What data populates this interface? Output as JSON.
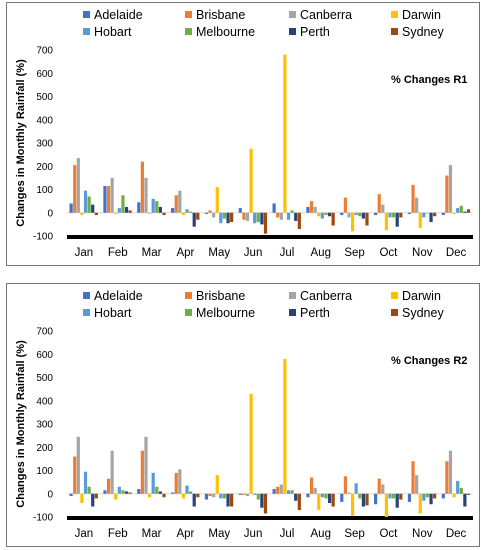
{
  "colors": {
    "Adelaide": "#4472C4",
    "Brisbane": "#ED7D31",
    "Canberra": "#A5A5A5",
    "Darwin": "#FFC000",
    "Hobart": "#5B9BD5",
    "Melbourne": "#70AD47",
    "Perth": "#264478",
    "Sydney": "#9E480E"
  },
  "chart_data": [
    {
      "type": "bar",
      "annotation": "% Changes R1",
      "ylabel": "Changes in Monthly Rainfall (%)",
      "xlabel": "",
      "ylim": [
        -100,
        700
      ],
      "yticks": [
        -100,
        0,
        100,
        200,
        300,
        400,
        500,
        600,
        700
      ],
      "legend_position": "top",
      "grid": false,
      "categories": [
        "Jan",
        "Feb",
        "Mar",
        "Apr",
        "May",
        "Jun",
        "Jul",
        "Aug",
        "Sep",
        "Oct",
        "Nov",
        "Dec"
      ],
      "series": [
        {
          "name": "Adelaide",
          "values": [
            40,
            115,
            45,
            20,
            -5,
            20,
            40,
            25,
            -10,
            -10,
            -5,
            -10
          ]
        },
        {
          "name": "Brisbane",
          "values": [
            205,
            115,
            220,
            75,
            10,
            -30,
            -20,
            50,
            65,
            80,
            120,
            160
          ]
        },
        {
          "name": "Canberra",
          "values": [
            235,
            150,
            150,
            95,
            -20,
            -35,
            -30,
            25,
            -20,
            35,
            65,
            205
          ]
        },
        {
          "name": "Darwin",
          "values": [
            -10,
            -5,
            -5,
            -10,
            110,
            275,
            680,
            -15,
            -80,
            -75,
            -65,
            -5
          ]
        },
        {
          "name": "Hobart",
          "values": [
            95,
            20,
            60,
            15,
            -45,
            -45,
            -30,
            -25,
            -10,
            -20,
            -20,
            20
          ]
        },
        {
          "name": "Melbourne",
          "values": [
            70,
            75,
            50,
            5,
            -25,
            -40,
            10,
            -10,
            -15,
            -20,
            0,
            30
          ]
        },
        {
          "name": "Perth",
          "values": [
            35,
            25,
            25,
            -60,
            -45,
            -50,
            -35,
            -15,
            -25,
            -60,
            -40,
            5
          ]
        },
        {
          "name": "Sydney",
          "values": [
            -10,
            10,
            -10,
            -30,
            -40,
            -90,
            -70,
            -55,
            -55,
            -20,
            -15,
            15
          ]
        }
      ]
    },
    {
      "type": "bar",
      "annotation": "% Changes R2",
      "ylabel": "Changes in Monthly Rainfall (%)",
      "xlabel": "",
      "ylim": [
        -100,
        700
      ],
      "yticks": [
        -100,
        0,
        100,
        200,
        300,
        400,
        500,
        600,
        700
      ],
      "legend_position": "top",
      "grid": false,
      "categories": [
        "Jan",
        "Feb",
        "Mar",
        "Apr",
        "May",
        "Jun",
        "Jul",
        "Aug",
        "Sep",
        "Oct",
        "Nov",
        "Dec"
      ],
      "series": [
        {
          "name": "Adelaide",
          "values": [
            -10,
            15,
            20,
            5,
            -25,
            -5,
            20,
            -15,
            -35,
            -45,
            -35,
            -20
          ]
        },
        {
          "name": "Brisbane",
          "values": [
            160,
            65,
            185,
            90,
            -10,
            -5,
            30,
            70,
            75,
            65,
            140,
            140
          ]
        },
        {
          "name": "Canberra",
          "values": [
            245,
            185,
            245,
            105,
            -15,
            -10,
            40,
            25,
            5,
            40,
            80,
            185
          ]
        },
        {
          "name": "Darwin",
          "values": [
            -40,
            -25,
            -15,
            -20,
            80,
            430,
            580,
            -70,
            -95,
            -100,
            -85,
            -15
          ]
        },
        {
          "name": "Hobart",
          "values": [
            95,
            30,
            90,
            35,
            -20,
            -5,
            15,
            -15,
            45,
            -20,
            -30,
            55
          ]
        },
        {
          "name": "Melbourne",
          "values": [
            30,
            15,
            30,
            10,
            -20,
            -25,
            15,
            -20,
            -20,
            -20,
            -15,
            25
          ]
        },
        {
          "name": "Perth",
          "values": [
            -55,
            10,
            10,
            -55,
            -55,
            -60,
            -30,
            -40,
            -55,
            -60,
            -45,
            -55
          ]
        },
        {
          "name": "Sydney",
          "values": [
            -20,
            5,
            -15,
            -15,
            -55,
            -85,
            -70,
            -55,
            -50,
            -25,
            -20,
            -5
          ]
        }
      ]
    }
  ]
}
